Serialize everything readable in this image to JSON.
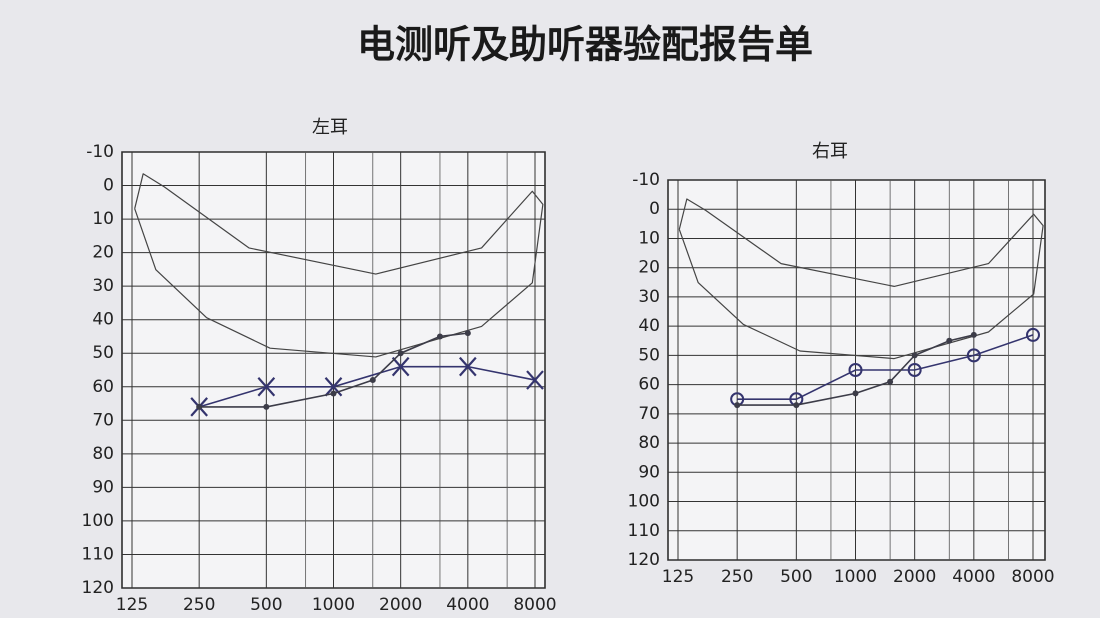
{
  "title": "电测听及助听器验配报告单",
  "chart_data": [
    {
      "type": "line",
      "title": "左耳",
      "xscale": "log",
      "grid": true,
      "xlim": [
        125,
        8000
      ],
      "xticks": [
        125,
        250,
        500,
        1000,
        2000,
        4000,
        8000
      ],
      "x_minor_ticks": [
        750,
        1500,
        3000,
        6000
      ],
      "ylim": [
        120,
        -10
      ],
      "yticks": [
        -10,
        0,
        10,
        20,
        30,
        40,
        50,
        60,
        70,
        80,
        90,
        100,
        110,
        120
      ],
      "series": [
        {
          "marker": "x",
          "color": "#34346e",
          "x": [
            250,
            500,
            1000,
            2000,
            4000,
            8000
          ],
          "values": [
            66,
            60,
            60,
            54,
            54,
            58
          ]
        },
        {
          "marker": "dot",
          "color": "#3c3c48",
          "x": [
            250,
            500,
            1000,
            1500,
            2000,
            3000,
            4000
          ],
          "values": [
            66,
            66,
            62,
            58,
            50,
            45,
            44
          ]
        }
      ]
    },
    {
      "type": "line",
      "title": "右耳",
      "xscale": "log",
      "grid": true,
      "xlim": [
        125,
        8000
      ],
      "xticks": [
        125,
        250,
        500,
        1000,
        2000,
        4000,
        8000
      ],
      "x_minor_ticks": [
        750,
        1500,
        3000,
        6000
      ],
      "ylim": [
        120,
        -10
      ],
      "yticks": [
        -10,
        0,
        10,
        20,
        30,
        40,
        50,
        60,
        70,
        80,
        90,
        100,
        110,
        120
      ],
      "series": [
        {
          "marker": "o",
          "color": "#34346e",
          "x": [
            250,
            500,
            1000,
            2000,
            4000,
            8000
          ],
          "values": [
            65,
            65,
            55,
            55,
            50,
            43
          ]
        },
        {
          "marker": "dot",
          "color": "#3c3c48",
          "x": [
            250,
            500,
            1000,
            1500,
            2000,
            3000,
            4000
          ],
          "values": [
            67,
            67,
            63,
            59,
            50,
            45,
            43
          ]
        }
      ]
    }
  ]
}
